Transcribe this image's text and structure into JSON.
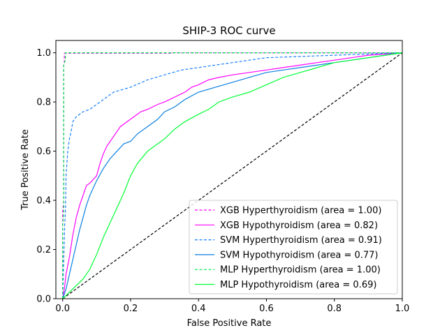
{
  "chart_data": {
    "type": "line",
    "title": "SHIP-3 ROC curve",
    "xlabel": "False Positive Rate",
    "ylabel": "True Positive Rate",
    "xlim": [
      -0.02,
      1.0
    ],
    "ylim": [
      0.0,
      1.05
    ],
    "x_ticks": [
      0.0,
      0.2,
      0.4,
      0.6,
      0.8,
      1.0
    ],
    "y_ticks": [
      0.0,
      0.2,
      0.4,
      0.6,
      0.8,
      1.0
    ],
    "x_tick_labels": [
      "0.0",
      "0.2",
      "0.4",
      "0.6",
      "0.8",
      "1.0"
    ],
    "y_tick_labels": [
      "0.0",
      "0.2",
      "0.4",
      "0.6",
      "0.8",
      "1.0"
    ],
    "grid": false,
    "legend_position": "lower-right",
    "series": [
      {
        "name": "XGB Hyperthyroidism (area = 1.00)",
        "color": "#ff00ff",
        "dash": "dashed",
        "x": [
          0.0,
          0.0,
          0.003,
          0.003,
          0.005,
          0.005,
          0.32,
          0.32,
          1.0
        ],
        "y": [
          0.0,
          0.35,
          0.4,
          0.95,
          0.96,
          0.998,
          0.998,
          1.0,
          1.0
        ]
      },
      {
        "name": "XGB Hypothyroidism (area = 0.82)",
        "color": "#ff00ff",
        "dash": "solid",
        "x": [
          0.0,
          0.005,
          0.01,
          0.02,
          0.03,
          0.04,
          0.05,
          0.06,
          0.07,
          0.08,
          0.1,
          0.11,
          0.12,
          0.13,
          0.14,
          0.15,
          0.17,
          0.19,
          0.21,
          0.23,
          0.25,
          0.28,
          0.3,
          0.33,
          0.36,
          0.38,
          0.4,
          0.43,
          0.46,
          0.5,
          0.55,
          0.6,
          0.65,
          0.7,
          0.75,
          0.8,
          0.85,
          0.9,
          0.95,
          1.0
        ],
        "y": [
          0.0,
          0.04,
          0.1,
          0.17,
          0.26,
          0.33,
          0.38,
          0.42,
          0.46,
          0.47,
          0.5,
          0.55,
          0.59,
          0.62,
          0.64,
          0.66,
          0.7,
          0.72,
          0.74,
          0.76,
          0.77,
          0.79,
          0.8,
          0.82,
          0.84,
          0.86,
          0.87,
          0.89,
          0.9,
          0.91,
          0.92,
          0.93,
          0.94,
          0.95,
          0.96,
          0.97,
          0.98,
          0.99,
          0.995,
          1.0
        ]
      },
      {
        "name": "SVM Hyperthyroidism (area = 0.91)",
        "color": "#1a80ff",
        "dash": "dashed",
        "x": [
          0.0,
          0.003,
          0.006,
          0.008,
          0.01,
          0.015,
          0.02,
          0.025,
          0.03,
          0.04,
          0.05,
          0.06,
          0.08,
          0.1,
          0.12,
          0.15,
          0.2,
          0.25,
          0.3,
          0.35,
          0.4,
          0.45,
          0.5,
          0.55,
          0.6,
          0.7,
          0.8,
          0.9,
          1.0
        ],
        "y": [
          0.0,
          0.15,
          0.3,
          0.35,
          0.5,
          0.6,
          0.65,
          0.68,
          0.72,
          0.74,
          0.75,
          0.76,
          0.77,
          0.79,
          0.81,
          0.84,
          0.86,
          0.89,
          0.91,
          0.93,
          0.94,
          0.95,
          0.96,
          0.97,
          0.98,
          0.985,
          0.99,
          0.995,
          1.0
        ]
      },
      {
        "name": "SVM Hypothyroidism (area = 0.77)",
        "color": "#0b7fe0",
        "dash": "solid",
        "x": [
          0.0,
          0.01,
          0.02,
          0.03,
          0.04,
          0.05,
          0.06,
          0.07,
          0.08,
          0.09,
          0.1,
          0.12,
          0.14,
          0.16,
          0.18,
          0.2,
          0.22,
          0.25,
          0.28,
          0.3,
          0.33,
          0.36,
          0.4,
          0.45,
          0.5,
          0.55,
          0.6,
          0.65,
          0.7,
          0.75,
          0.8,
          0.85,
          0.9,
          0.95,
          1.0
        ],
        "y": [
          0.0,
          0.04,
          0.1,
          0.16,
          0.22,
          0.28,
          0.33,
          0.38,
          0.42,
          0.45,
          0.48,
          0.53,
          0.57,
          0.6,
          0.63,
          0.64,
          0.67,
          0.7,
          0.73,
          0.76,
          0.78,
          0.81,
          0.84,
          0.86,
          0.88,
          0.9,
          0.92,
          0.93,
          0.94,
          0.95,
          0.96,
          0.97,
          0.98,
          0.99,
          1.0
        ]
      },
      {
        "name": "MLP Hyperthyroidism (area = 1.00)",
        "color": "#00e64d",
        "dash": "dashed",
        "x": [
          0.0,
          0.0,
          0.003,
          0.003,
          0.008,
          0.008,
          1.0
        ],
        "y": [
          0.0,
          0.3,
          0.35,
          0.95,
          0.97,
          1.0,
          1.0
        ]
      },
      {
        "name": "MLP Hypothyroidism (area = 0.69)",
        "color": "#00ff33",
        "dash": "solid",
        "x": [
          0.0,
          0.03,
          0.06,
          0.08,
          0.1,
          0.12,
          0.14,
          0.16,
          0.18,
          0.2,
          0.22,
          0.25,
          0.28,
          0.3,
          0.33,
          0.36,
          0.4,
          0.43,
          0.46,
          0.5,
          0.55,
          0.6,
          0.65,
          0.7,
          0.75,
          0.8,
          0.85,
          0.9,
          0.95,
          1.0
        ],
        "y": [
          0.0,
          0.04,
          0.08,
          0.12,
          0.18,
          0.25,
          0.31,
          0.37,
          0.43,
          0.5,
          0.55,
          0.6,
          0.63,
          0.65,
          0.69,
          0.72,
          0.75,
          0.77,
          0.8,
          0.82,
          0.84,
          0.87,
          0.9,
          0.92,
          0.94,
          0.96,
          0.97,
          0.98,
          0.99,
          1.0
        ]
      }
    ],
    "reference_line": {
      "x": [
        0.0,
        1.0
      ],
      "y": [
        0.0,
        1.0
      ],
      "color": "#000000",
      "dash": "dashed"
    }
  }
}
